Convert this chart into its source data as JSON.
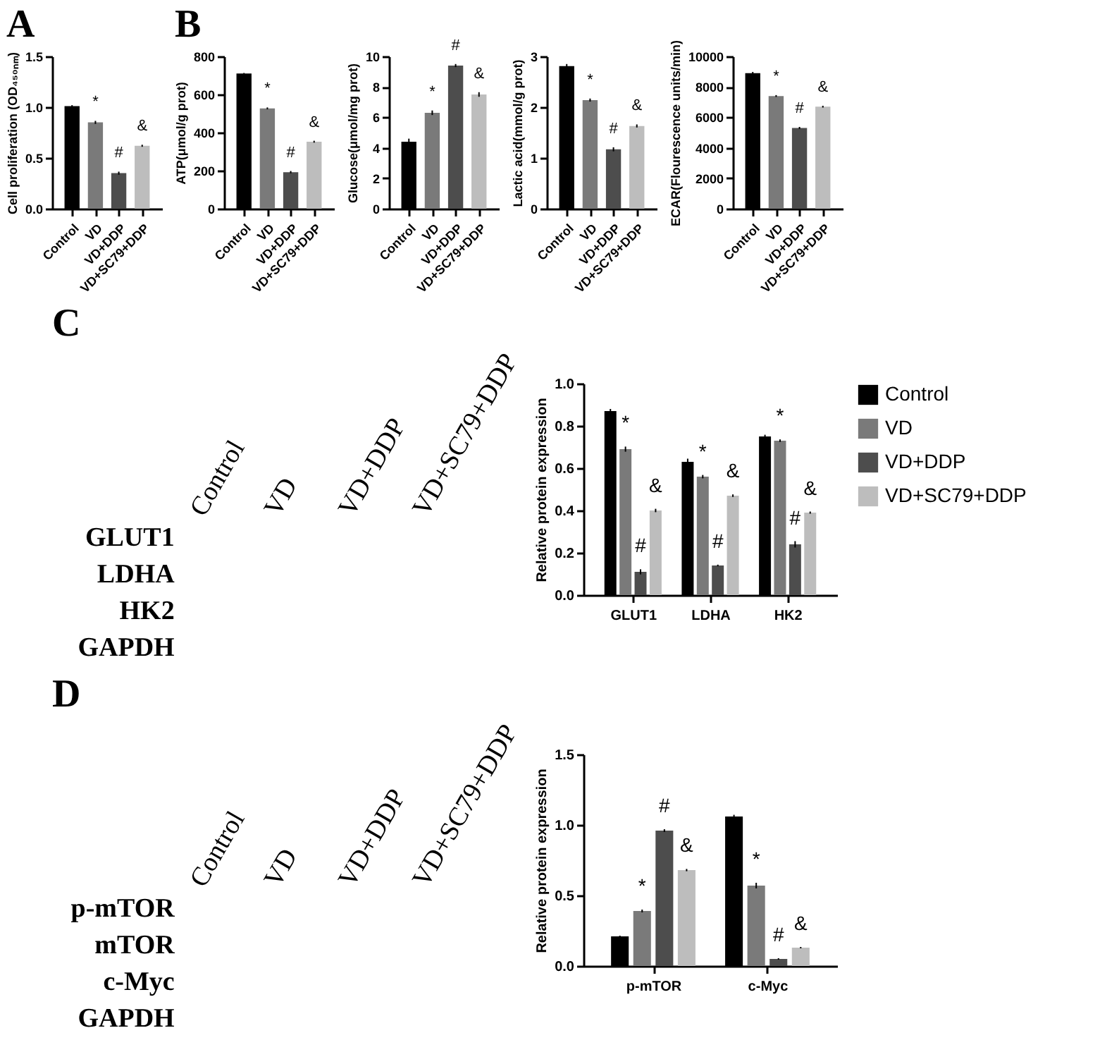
{
  "chart_data": [
    {
      "type": "bar",
      "title": "A",
      "ylabel": "Cell proliferation (OD₄₅₀ₙₘ)",
      "categories": [
        "Control",
        "VD",
        "VD+DDP",
        "VD+SC79+DDP"
      ],
      "values": [
        1.01,
        0.85,
        0.35,
        0.62
      ],
      "errors": [
        0.01,
        0.015,
        0.015,
        0.01
      ],
      "value_labels": [
        null,
        "*",
        "#",
        "&"
      ],
      "colors": [
        "#000000",
        "#7a7a7a",
        "#4d4d4d",
        "#bdbdbd"
      ],
      "ylim": [
        0,
        1.5
      ],
      "yticks": [
        {
          "value": 0,
          "label": "0.0"
        },
        {
          "value": 0.5,
          "label": "0.5"
        },
        {
          "value": 1,
          "label": "1.0"
        },
        {
          "value": 1.5,
          "label": "1.5"
        }
      ],
      "grid": false,
      "legend": false
    },
    {
      "type": "bar",
      "title": "B",
      "ylabel": "ATP(μmol/g prot)",
      "categories": [
        "Control",
        "VD",
        "VD+DDP",
        "VD+SC79+DDP"
      ],
      "values": [
        710,
        527,
        192,
        352
      ],
      "errors": [
        3,
        5,
        6,
        5
      ],
      "value_labels": [
        null,
        "*",
        "#",
        "&"
      ],
      "colors": [
        "#000000",
        "#7a7a7a",
        "#4d4d4d",
        "#bdbdbd"
      ],
      "ylim": [
        0,
        800
      ],
      "yticks": [
        0,
        200,
        400,
        600,
        800
      ],
      "grid": false,
      "legend": false
    },
    {
      "type": "bar",
      "ylabel": "Glucose(μmol/mg prot)",
      "categories": [
        "Control",
        "VD",
        "VD+DDP",
        "VD+SC79+DDP"
      ],
      "values": [
        4.4,
        6.3,
        9.4,
        7.5
      ],
      "errors": [
        0.2,
        0.15,
        0.1,
        0.15
      ],
      "value_labels": [
        null,
        "*",
        "#",
        "&"
      ],
      "colors": [
        "#000000",
        "#7a7a7a",
        "#4d4d4d",
        "#bdbdbd"
      ],
      "ylim": [
        0,
        10
      ],
      "yticks": [
        0,
        2,
        4,
        6,
        8,
        10
      ],
      "grid": false,
      "legend": false
    },
    {
      "type": "bar",
      "ylabel": "Lactic acid(mmol/g prot)",
      "categories": [
        "Control",
        "VD",
        "VD+DDP",
        "VD+SC79+DDP"
      ],
      "values": [
        2.81,
        2.14,
        1.17,
        1.63
      ],
      "errors": [
        0.04,
        0.03,
        0.04,
        0.03
      ],
      "value_labels": [
        null,
        "*",
        "#",
        "&"
      ],
      "colors": [
        "#000000",
        "#7a7a7a",
        "#4d4d4d",
        "#bdbdbd"
      ],
      "ylim": [
        0,
        3
      ],
      "yticks": [
        0,
        1,
        2,
        3
      ],
      "grid": false,
      "legend": false
    },
    {
      "type": "bar",
      "ylabel": "ECAR(Flourescence units/min)",
      "categories": [
        "Control",
        "VD",
        "VD+DDP",
        "VD+SC79+DDP"
      ],
      "values": [
        8900,
        7400,
        5300,
        6700
      ],
      "errors": [
        80,
        60,
        70,
        60
      ],
      "value_labels": [
        null,
        "*",
        "#",
        "&"
      ],
      "colors": [
        "#000000",
        "#7a7a7a",
        "#4d4d4d",
        "#bdbdbd"
      ],
      "ylim": [
        0,
        10000
      ],
      "yticks": [
        0,
        2000,
        4000,
        6000,
        8000,
        10000
      ],
      "grid": false,
      "legend": false
    },
    {
      "type": "other",
      "title": "C",
      "categories": [
        "Control",
        "VD",
        "VD+DDP",
        "VD+SC79+DDP"
      ],
      "y_categories": [
        "GLUT1",
        "LDHA",
        "HK2",
        "GAPDH"
      ]
    },
    {
      "type": "bar",
      "ylabel": "Relative protein expression",
      "categories": [
        "GLUT1",
        "LDHA",
        "HK2"
      ],
      "series": [
        {
          "name": "Control",
          "color": "#000000",
          "values": [
            0.87,
            0.63,
            0.75
          ],
          "errors": [
            0.01,
            0.015,
            0.008
          ],
          "value_labels": [
            null,
            null,
            null
          ]
        },
        {
          "name": "VD",
          "color": "#7a7a7a",
          "values": [
            0.69,
            0.56,
            0.73
          ],
          "errors": [
            0.012,
            0.008,
            0.006
          ],
          "value_labels": [
            "*",
            "*",
            "*"
          ]
        },
        {
          "name": "VD+DDP",
          "color": "#4d4d4d",
          "values": [
            0.11,
            0.14,
            0.24
          ],
          "errors": [
            0.012,
            0.004,
            0.015
          ],
          "value_labels": [
            "#",
            "#",
            "#"
          ]
        },
        {
          "name": "VD+SC79+DDP",
          "color": "#bdbdbd",
          "values": [
            0.4,
            0.47,
            0.39
          ],
          "errors": [
            0.008,
            0.006,
            0.005
          ],
          "value_labels": [
            "&",
            "&",
            "&"
          ]
        }
      ],
      "ylim": [
        0,
        1.0
      ],
      "yticks": [
        {
          "value": 0,
          "label": "0.0"
        },
        {
          "value": 0.2,
          "label": "0.2"
        },
        {
          "value": 0.4,
          "label": "0.4"
        },
        {
          "value": 0.6,
          "label": "0.6"
        },
        {
          "value": 0.8,
          "label": "0.8"
        },
        {
          "value": 1.0,
          "label": "1.0"
        }
      ],
      "grid": false,
      "legend": "right"
    },
    {
      "type": "other",
      "title": "D",
      "categories": [
        "Control",
        "VD",
        "VD+DDP",
        "VD+SC79+DDP"
      ],
      "y_categories": [
        "p-mTOR",
        "mTOR",
        "c-Myc",
        "GAPDH"
      ]
    },
    {
      "type": "bar",
      "ylabel": "Relative protein expression",
      "categories": [
        "p-mTOR",
        "c-Myc"
      ],
      "series": [
        {
          "color": "#000000",
          "values": [
            0.21,
            1.06
          ],
          "errors": [
            0.005,
            0.012
          ],
          "value_labels": [
            null,
            null
          ]
        },
        {
          "color": "#7a7a7a",
          "values": [
            0.39,
            0.57
          ],
          "errors": [
            0.01,
            0.02
          ],
          "value_labels": [
            "*",
            "*"
          ]
        },
        {
          "color": "#4d4d4d",
          "values": [
            0.96,
            0.05
          ],
          "errors": [
            0.01,
            0.005
          ],
          "value_labels": [
            "#",
            "#"
          ]
        },
        {
          "color": "#bdbdbd",
          "values": [
            0.68,
            0.13
          ],
          "errors": [
            0.008,
            0.005
          ],
          "value_labels": [
            "&",
            "&"
          ]
        }
      ],
      "ylim": [
        0,
        1.5
      ],
      "yticks": [
        {
          "value": 0,
          "label": "0.0"
        },
        {
          "value": 0.5,
          "label": "0.5"
        },
        {
          "value": 1,
          "label": "1.0"
        },
        {
          "value": 1.5,
          "label": "1.5"
        }
      ],
      "grid": false,
      "legend": false
    }
  ]
}
